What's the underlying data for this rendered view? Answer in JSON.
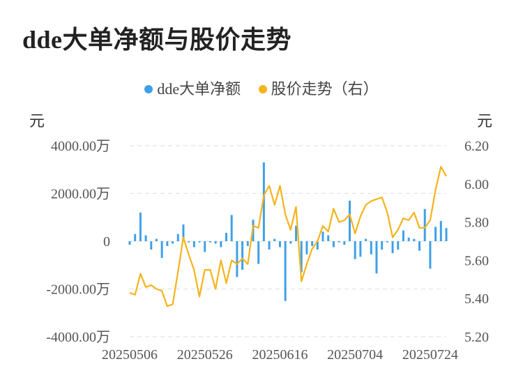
{
  "title": "dde大单净额与股价走势",
  "legend": {
    "bars_label": "dde大单净额",
    "line_label": "股价走势（右）"
  },
  "units": {
    "left": "元",
    "right": "元"
  },
  "colors": {
    "bars": "#3FA0E8",
    "line": "#F5B31B",
    "grid": "#E3E3E3"
  },
  "chart_data": {
    "type": "bar+line",
    "left_axis": {
      "ticks": [
        4000,
        2000,
        0,
        -2000,
        -4000
      ],
      "tick_labels": [
        "4000.00万",
        "2000.00万",
        "0",
        "-2000.00万",
        "-4000.00万"
      ],
      "ylim": [
        -4000,
        4000
      ],
      "unit": "万元"
    },
    "right_axis": {
      "ticks": [
        6.2,
        6.0,
        5.8,
        5.6,
        5.4,
        5.2
      ],
      "tick_labels": [
        "6.20",
        "6.00",
        "5.80",
        "5.60",
        "5.40",
        "5.20"
      ],
      "ylim": [
        5.2,
        6.2
      ]
    },
    "x_tick_labels": [
      {
        "index": 0,
        "label": "20250506"
      },
      {
        "index": 14,
        "label": "20250526"
      },
      {
        "index": 28,
        "label": "20250616"
      },
      {
        "index": 42,
        "label": "20250704"
      },
      {
        "index": 56,
        "label": "20250724"
      }
    ],
    "bars": [
      -150,
      300,
      1200,
      250,
      -350,
      100,
      -700,
      -200,
      -100,
      300,
      700,
      -50,
      -250,
      -50,
      -450,
      -50,
      -100,
      -250,
      350,
      1100,
      -1500,
      -1200,
      -200,
      900,
      -950,
      3300,
      -350,
      100,
      -250,
      -2500,
      -100,
      650,
      -1300,
      -550,
      -200,
      -350,
      400,
      250,
      -250,
      -50,
      -150,
      1700,
      -750,
      -650,
      100,
      -550,
      -1350,
      -350,
      -50,
      -500,
      -350,
      450,
      150,
      100,
      -400,
      1350,
      -1150,
      600,
      850,
      550
    ],
    "line": [
      5.43,
      5.42,
      5.53,
      5.46,
      5.47,
      5.45,
      5.44,
      5.36,
      5.37,
      5.54,
      5.72,
      5.63,
      5.55,
      5.41,
      5.55,
      5.55,
      5.45,
      5.6,
      5.48,
      5.6,
      5.58,
      5.61,
      5.58,
      5.78,
      5.77,
      5.94,
      5.99,
      5.89,
      5.99,
      5.84,
      5.76,
      5.88,
      5.49,
      5.58,
      5.66,
      5.7,
      5.78,
      5.75,
      5.87,
      5.8,
      5.81,
      5.84,
      5.74,
      5.83,
      5.89,
      5.91,
      5.92,
      5.93,
      5.85,
      5.72,
      5.76,
      5.82,
      5.81,
      5.85,
      5.77,
      5.77,
      5.81,
      5.97,
      6.09,
      6.04
    ]
  }
}
